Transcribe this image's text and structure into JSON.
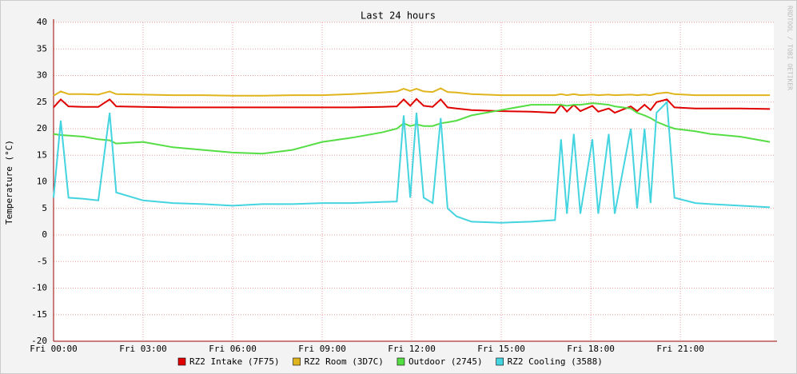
{
  "chart_data": {
    "type": "line",
    "title": "Last 24 hours",
    "y_label": "Temperature (°C)",
    "watermark": "RRDTOOL / TOBI OETIKER",
    "x": [
      0,
      0.24,
      0.5,
      1,
      1.5,
      1.88,
      2.1,
      3,
      4,
      5,
      6,
      7,
      8,
      9,
      10,
      11,
      11.5,
      11.73,
      11.95,
      12.16,
      12.4,
      12.7,
      12.97,
      13.2,
      13.5,
      14,
      15,
      16,
      16.8,
      17,
      17.2,
      17.43,
      17.65,
      18.05,
      18.25,
      18.6,
      18.8,
      19.34,
      19.55,
      19.8,
      20,
      20.2,
      20.55,
      20.8,
      21.5,
      22,
      23,
      24
    ],
    "series": [
      {
        "name": "RZ2 Intake (7F75)",
        "color": "#e00000",
        "values": [
          24,
          25.5,
          24.2,
          24.1,
          24.1,
          25.5,
          24.2,
          24.1,
          24,
          24,
          24,
          24,
          24,
          24,
          24,
          24.1,
          24.2,
          25.5,
          24.3,
          25.6,
          24.3,
          24.1,
          25.5,
          24,
          23.8,
          23.5,
          23.3,
          23.2,
          23,
          24.5,
          23.2,
          24.5,
          23.3,
          24.3,
          23.2,
          23.8,
          23,
          24.2,
          23.3,
          24.5,
          23.5,
          25,
          25.5,
          24,
          23.8,
          23.8,
          23.8,
          23.7
        ]
      },
      {
        "name": "RZ2 Room (3D7C)",
        "color": "#e0b41c",
        "values": [
          26.2,
          27,
          26.5,
          26.5,
          26.4,
          27,
          26.5,
          26.4,
          26.3,
          26.3,
          26.2,
          26.2,
          26.3,
          26.3,
          26.5,
          26.8,
          27,
          27.5,
          27.1,
          27.5,
          27,
          26.9,
          27.6,
          26.9,
          26.8,
          26.5,
          26.3,
          26.3,
          26.3,
          26.5,
          26.3,
          26.5,
          26.3,
          26.4,
          26.3,
          26.4,
          26.3,
          26.4,
          26.3,
          26.4,
          26.3,
          26.6,
          26.8,
          26.5,
          26.3,
          26.3,
          26.3,
          26.3
        ]
      },
      {
        "name": "Outdoor (2745)",
        "color": "#55dd44",
        "values": [
          19,
          18.8,
          18.7,
          18.5,
          18,
          17.8,
          17.2,
          17.5,
          16.5,
          16,
          15.5,
          15.3,
          16,
          17.5,
          18.3,
          19.3,
          20,
          21,
          20.5,
          20.8,
          20.5,
          20.5,
          21,
          21.2,
          21.5,
          22.5,
          23.5,
          24.5,
          24.5,
          24.5,
          24.3,
          24.5,
          24.5,
          24.8,
          24.7,
          24.5,
          24.2,
          23.8,
          23,
          22.5,
          22,
          21.3,
          20.5,
          20,
          19.5,
          19,
          18.5,
          17.5
        ]
      },
      {
        "name": "RZ2 Cooling (3588)",
        "color": "#44d4e0",
        "values": [
          7,
          21.5,
          7,
          6.8,
          6.5,
          23,
          8,
          6.5,
          6,
          5.8,
          5.5,
          5.8,
          5.8,
          6,
          6,
          6.2,
          6.3,
          22.5,
          7,
          23,
          7,
          6,
          22,
          5,
          3.5,
          2.5,
          2.3,
          2.5,
          2.8,
          18,
          4,
          19,
          4,
          18,
          4,
          19,
          4,
          20,
          5,
          20,
          6,
          23,
          25,
          7,
          6,
          5.8,
          5.5,
          5.2
        ]
      }
    ],
    "xlim": [
      0,
      24.13
    ],
    "xticks": [
      {
        "value": 0,
        "label": "Fri 00:00"
      },
      {
        "value": 3,
        "label": "Fri 03:00"
      },
      {
        "value": 6,
        "label": "Fri 06:00"
      },
      {
        "value": 9,
        "label": "Fri 09:00"
      },
      {
        "value": 12,
        "label": "Fri 12:00"
      },
      {
        "value": 15,
        "label": "Fri 15:00"
      },
      {
        "value": 18,
        "label": "Fri 18:00"
      },
      {
        "value": 21,
        "label": "Fri 21:00"
      }
    ],
    "ylim": [
      -20,
      40
    ],
    "yticks": [
      -20,
      -15,
      -10,
      -5,
      0,
      5,
      10,
      15,
      20,
      25,
      30,
      35,
      40
    ],
    "grid": true
  }
}
